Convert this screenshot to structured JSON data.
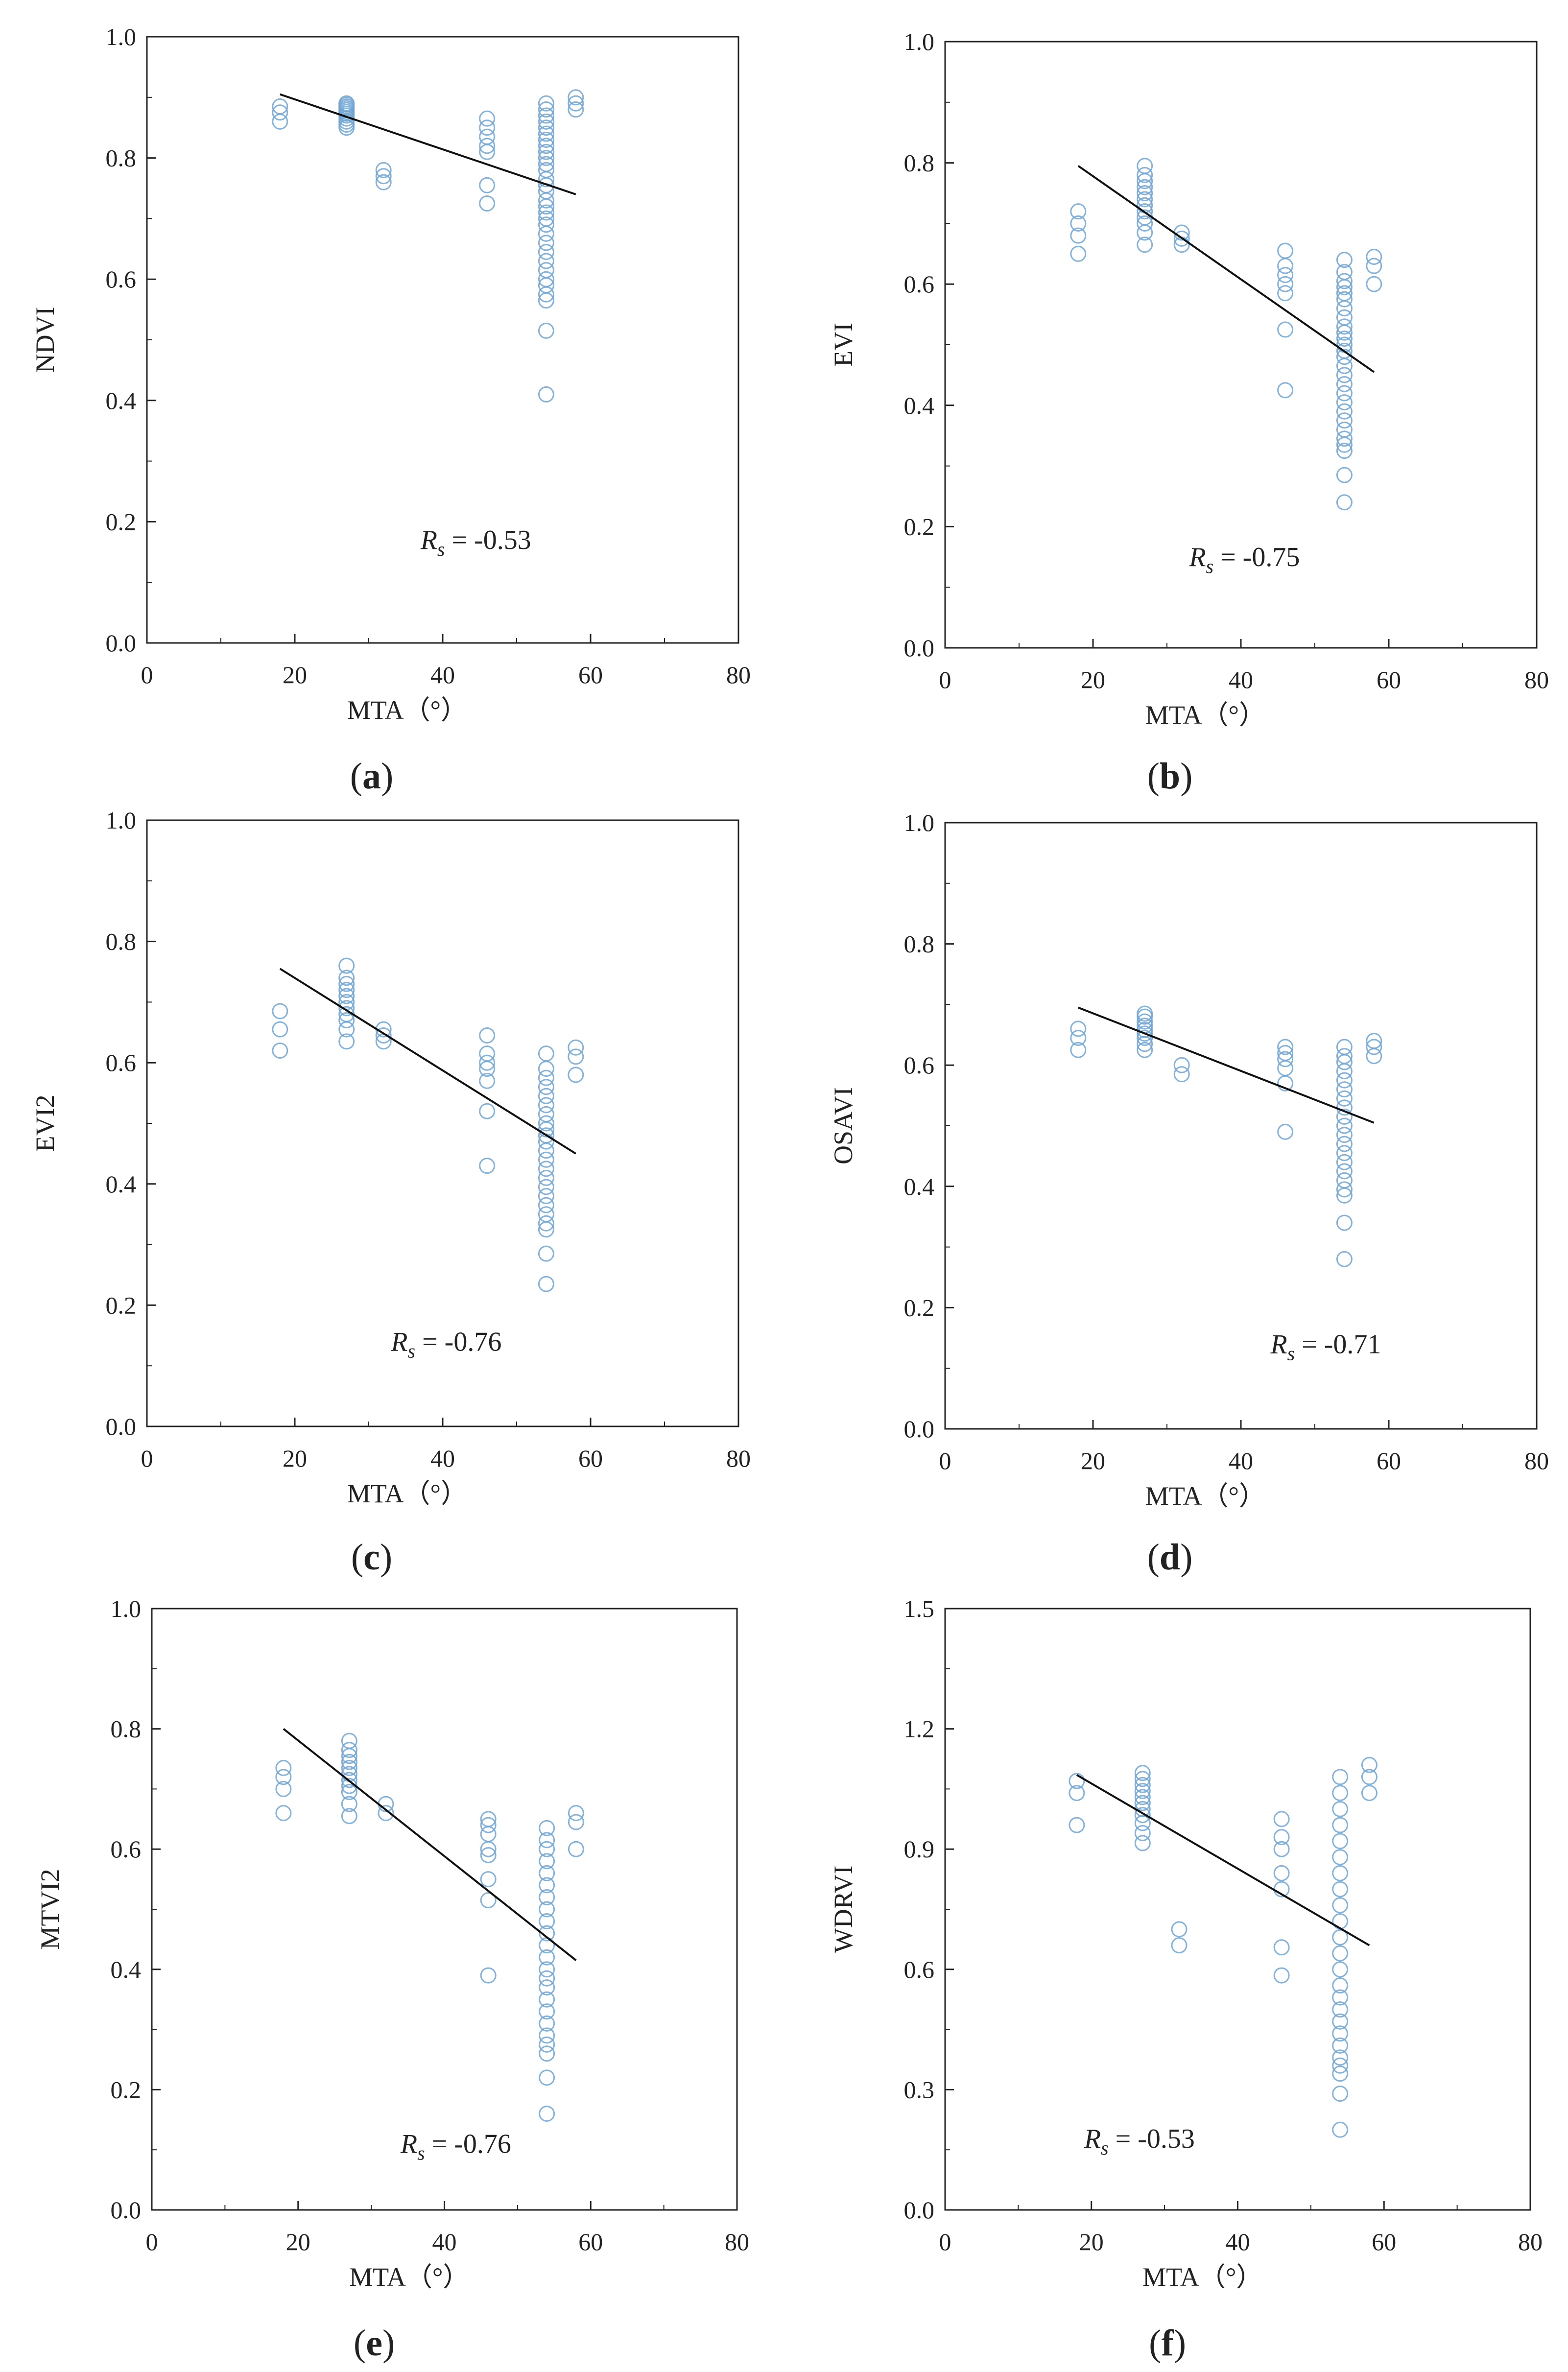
{
  "figure": {
    "caption_format": "({id})"
  },
  "chart_data": [
    {
      "id": "a",
      "type": "scatter",
      "xlabel": "MTA（°）",
      "ylabel": "NDVI",
      "xlim": [
        0,
        80
      ],
      "ylim": [
        0,
        1.0
      ],
      "xticks": [
        0,
        20,
        40,
        60,
        80
      ],
      "yticks": [
        0.0,
        0.2,
        0.4,
        0.6,
        0.8,
        1.0
      ],
      "ytick_decimals": 1,
      "annotation": {
        "prefix": "R",
        "sub": "s",
        "text": " = -0.53",
        "italic_r": true,
        "x": 37,
        "y": 0.155
      },
      "trendline": {
        "x": [
          18,
          58
        ],
        "y": [
          0.905,
          0.74
        ]
      },
      "groups": [
        {
          "x": 18,
          "y": [
            0.86,
            0.875,
            0.885
          ]
        },
        {
          "x": 27,
          "y": [
            0.85,
            0.855,
            0.86,
            0.865,
            0.87,
            0.873,
            0.876,
            0.879,
            0.882,
            0.885,
            0.888,
            0.89
          ]
        },
        {
          "x": 32,
          "y": [
            0.76,
            0.77,
            0.78
          ]
        },
        {
          "x": 46,
          "y": [
            0.725,
            0.755,
            0.81,
            0.82,
            0.835,
            0.85,
            0.865
          ]
        },
        {
          "x": 54,
          "y": [
            0.41,
            0.515,
            0.565,
            0.575,
            0.59,
            0.6,
            0.615,
            0.63,
            0.645,
            0.66,
            0.675,
            0.69,
            0.7,
            0.71,
            0.72,
            0.73,
            0.745,
            0.755,
            0.765,
            0.78,
            0.79,
            0.8,
            0.81,
            0.82,
            0.83,
            0.84,
            0.85,
            0.86,
            0.87,
            0.88,
            0.89
          ]
        },
        {
          "x": 58,
          "y": [
            0.88,
            0.89,
            0.9
          ]
        }
      ]
    },
    {
      "id": "b",
      "type": "scatter",
      "xlabel": "MTA（°）",
      "ylabel": "EVI",
      "xlim": [
        0,
        80
      ],
      "ylim": [
        0,
        1.0
      ],
      "xticks": [
        0,
        20,
        40,
        60,
        80
      ],
      "yticks": [
        0.0,
        0.2,
        0.4,
        0.6,
        0.8,
        1.0
      ],
      "ytick_decimals": 1,
      "annotation": {
        "prefix": "R",
        "sub": "s",
        "text": " = -0.75",
        "italic_r": true,
        "x": 33,
        "y": 0.135
      },
      "trendline": {
        "x": [
          18,
          58
        ],
        "y": [
          0.795,
          0.455
        ]
      },
      "groups": [
        {
          "x": 18,
          "y": [
            0.65,
            0.68,
            0.7,
            0.72
          ]
        },
        {
          "x": 27,
          "y": [
            0.665,
            0.685,
            0.7,
            0.71,
            0.72,
            0.73,
            0.74,
            0.75,
            0.76,
            0.77,
            0.78,
            0.795
          ]
        },
        {
          "x": 32,
          "y": [
            0.665,
            0.675,
            0.685
          ]
        },
        {
          "x": 46,
          "y": [
            0.425,
            0.525,
            0.585,
            0.6,
            0.615,
            0.63,
            0.655
          ]
        },
        {
          "x": 54,
          "y": [
            0.24,
            0.285,
            0.325,
            0.335,
            0.345,
            0.36,
            0.375,
            0.39,
            0.405,
            0.42,
            0.435,
            0.45,
            0.465,
            0.48,
            0.49,
            0.5,
            0.51,
            0.52,
            0.53,
            0.545,
            0.56,
            0.575,
            0.585,
            0.595,
            0.605,
            0.62,
            0.64
          ]
        },
        {
          "x": 58,
          "y": [
            0.6,
            0.63,
            0.645
          ]
        }
      ]
    },
    {
      "id": "c",
      "type": "scatter",
      "xlabel": "MTA（°）",
      "ylabel": "EVI2",
      "xlim": [
        0,
        80
      ],
      "ylim": [
        0,
        1.0
      ],
      "xticks": [
        0,
        20,
        40,
        60,
        80
      ],
      "yticks": [
        0.0,
        0.2,
        0.4,
        0.6,
        0.8,
        1.0
      ],
      "ytick_decimals": 1,
      "annotation": {
        "prefix": "R",
        "sub": "s",
        "text": " = -0.76",
        "italic_r": true,
        "x": 33,
        "y": 0.125
      },
      "trendline": {
        "x": [
          18,
          58
        ],
        "y": [
          0.755,
          0.45
        ]
      },
      "groups": [
        {
          "x": 18,
          "y": [
            0.62,
            0.655,
            0.685
          ]
        },
        {
          "x": 27,
          "y": [
            0.635,
            0.655,
            0.67,
            0.68,
            0.69,
            0.7,
            0.71,
            0.72,
            0.73,
            0.74,
            0.76
          ]
        },
        {
          "x": 32,
          "y": [
            0.635,
            0.645,
            0.655
          ]
        },
        {
          "x": 46,
          "y": [
            0.43,
            0.52,
            0.57,
            0.59,
            0.6,
            0.615,
            0.645
          ]
        },
        {
          "x": 54,
          "y": [
            0.235,
            0.285,
            0.325,
            0.335,
            0.35,
            0.365,
            0.38,
            0.395,
            0.41,
            0.425,
            0.44,
            0.455,
            0.47,
            0.48,
            0.49,
            0.5,
            0.515,
            0.53,
            0.545,
            0.56,
            0.575,
            0.59,
            0.615
          ]
        },
        {
          "x": 58,
          "y": [
            0.58,
            0.61,
            0.625
          ]
        }
      ]
    },
    {
      "id": "d",
      "type": "scatter",
      "xlabel": "MTA（°）",
      "ylabel": "OSAVI",
      "xlim": [
        0,
        80
      ],
      "ylim": [
        0,
        1.0
      ],
      "xticks": [
        0,
        20,
        40,
        60,
        80
      ],
      "yticks": [
        0.0,
        0.2,
        0.4,
        0.6,
        0.8,
        1.0
      ],
      "ytick_decimals": 1,
      "annotation": {
        "prefix": "R",
        "sub": "s",
        "text": " = -0.71",
        "italic_r": true,
        "x": 44,
        "y": 0.125
      },
      "trendline": {
        "x": [
          18,
          58
        ],
        "y": [
          0.695,
          0.505
        ]
      },
      "groups": [
        {
          "x": 18,
          "y": [
            0.625,
            0.645,
            0.66
          ]
        },
        {
          "x": 27,
          "y": [
            0.625,
            0.635,
            0.645,
            0.652,
            0.658,
            0.665,
            0.672,
            0.68,
            0.685
          ]
        },
        {
          "x": 32,
          "y": [
            0.585,
            0.6
          ]
        },
        {
          "x": 46,
          "y": [
            0.49,
            0.57,
            0.595,
            0.61,
            0.62,
            0.63
          ]
        },
        {
          "x": 54,
          "y": [
            0.28,
            0.34,
            0.385,
            0.395,
            0.41,
            0.425,
            0.44,
            0.455,
            0.47,
            0.485,
            0.5,
            0.515,
            0.53,
            0.545,
            0.56,
            0.575,
            0.59,
            0.605,
            0.615,
            0.63
          ]
        },
        {
          "x": 58,
          "y": [
            0.615,
            0.63,
            0.64
          ]
        }
      ]
    },
    {
      "id": "e",
      "type": "scatter",
      "xlabel": "MTA（°）",
      "ylabel": "MTVI2",
      "xlim": [
        0,
        80
      ],
      "ylim": [
        0,
        1.0
      ],
      "xticks": [
        0,
        20,
        40,
        60,
        80
      ],
      "yticks": [
        0.0,
        0.2,
        0.4,
        0.6,
        0.8,
        1.0
      ],
      "ytick_decimals": 1,
      "annotation": {
        "prefix": "R",
        "sub": "s",
        "text": " = -0.76",
        "italic_r": true,
        "x": 34,
        "y": 0.095
      },
      "trendline": {
        "x": [
          18,
          58
        ],
        "y": [
          0.8,
          0.415
        ]
      },
      "groups": [
        {
          "x": 18,
          "y": [
            0.66,
            0.7,
            0.72,
            0.735
          ]
        },
        {
          "x": 27,
          "y": [
            0.655,
            0.675,
            0.695,
            0.705,
            0.715,
            0.725,
            0.735,
            0.745,
            0.755,
            0.765,
            0.78
          ]
        },
        {
          "x": 32,
          "y": [
            0.66,
            0.675
          ]
        },
        {
          "x": 46,
          "y": [
            0.39,
            0.515,
            0.55,
            0.59,
            0.6,
            0.625,
            0.64,
            0.65
          ]
        },
        {
          "x": 54,
          "y": [
            0.16,
            0.22,
            0.26,
            0.275,
            0.29,
            0.31,
            0.33,
            0.35,
            0.37,
            0.385,
            0.4,
            0.42,
            0.44,
            0.46,
            0.48,
            0.5,
            0.52,
            0.54,
            0.56,
            0.58,
            0.6,
            0.615,
            0.635
          ]
        },
        {
          "x": 58,
          "y": [
            0.6,
            0.645,
            0.66
          ]
        }
      ]
    },
    {
      "id": "f",
      "type": "scatter",
      "xlabel": "MTA（°）",
      "ylabel": "WDRVI",
      "xlim": [
        0,
        80
      ],
      "ylim": [
        0,
        1.5
      ],
      "xticks": [
        0,
        20,
        40,
        60,
        80
      ],
      "yticks": [
        0.0,
        0.3,
        0.6,
        0.9,
        1.2,
        1.5
      ],
      "ytick_decimals": 1,
      "annotation": {
        "prefix": "R",
        "sub": "s",
        "text": " = -0.53",
        "italic_r": true,
        "x": 19,
        "y": 0.155
      },
      "trendline": {
        "x": [
          18,
          58
        ],
        "y": [
          1.085,
          0.66
        ]
      },
      "groups": [
        {
          "x": 18,
          "y": [
            0.96,
            1.04,
            1.07
          ]
        },
        {
          "x": 27,
          "y": [
            0.915,
            0.94,
            0.965,
            0.985,
            1.0,
            1.015,
            1.03,
            1.045,
            1.06,
            1.075,
            1.09
          ]
        },
        {
          "x": 32,
          "y": [
            0.66,
            0.7
          ]
        },
        {
          "x": 46,
          "y": [
            0.585,
            0.655,
            0.8,
            0.84,
            0.9,
            0.93,
            0.975
          ]
        },
        {
          "x": 54,
          "y": [
            0.2,
            0.29,
            0.34,
            0.36,
            0.38,
            0.41,
            0.44,
            0.47,
            0.5,
            0.53,
            0.56,
            0.6,
            0.64,
            0.68,
            0.72,
            0.76,
            0.8,
            0.84,
            0.88,
            0.92,
            0.96,
            1.0,
            1.04,
            1.08
          ]
        },
        {
          "x": 58,
          "y": [
            1.04,
            1.08,
            1.11
          ]
        }
      ]
    }
  ]
}
